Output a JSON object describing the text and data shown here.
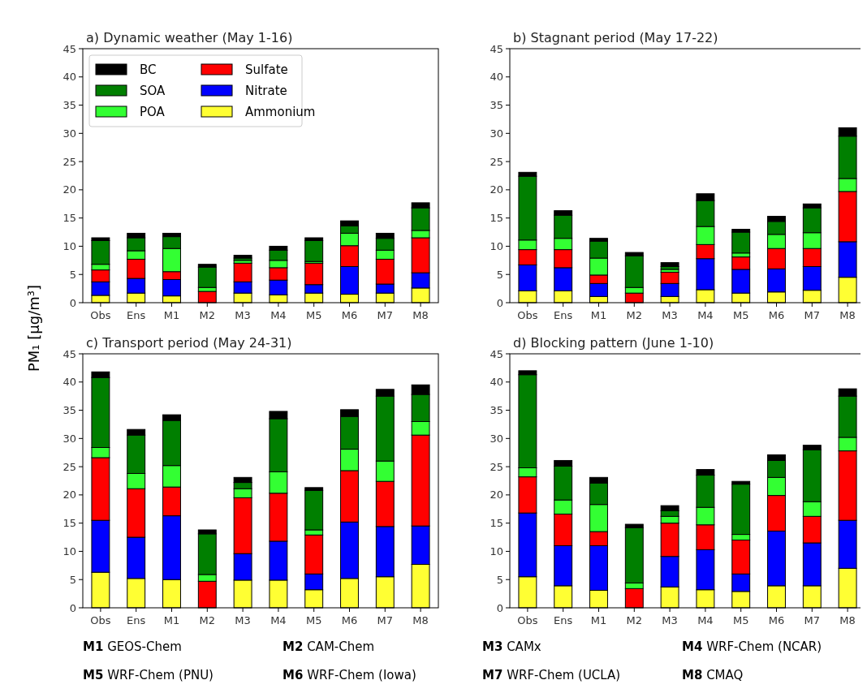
{
  "chart_data": [
    {
      "type": "bar",
      "stacked": true,
      "title": "a) Dynamic weather (May 1-16)",
      "ylabel": "PM₁ [μg/m³]",
      "categories": [
        "Obs",
        "Ens",
        "M1",
        "M2",
        "M3",
        "M4",
        "M5",
        "M6",
        "M7",
        "M8"
      ],
      "ylim": [
        0,
        45
      ],
      "yticks": [
        0,
        5,
        10,
        15,
        20,
        25,
        30,
        35,
        40,
        45
      ],
      "legend": "top left",
      "series": [
        {
          "name": "Ammonium",
          "color": "#ffff33",
          "values": [
            1.3,
            1.7,
            1.2,
            0,
            1.7,
            1.4,
            1.7,
            1.5,
            1.7,
            2.6
          ]
        },
        {
          "name": "Nitrate",
          "color": "#0000ff",
          "values": [
            2.4,
            2.6,
            2.9,
            0,
            2.0,
            2.6,
            1.5,
            4.9,
            1.6,
            2.7
          ]
        },
        {
          "name": "Sulfate",
          "color": "#ff0000",
          "values": [
            2.1,
            3.4,
            1.4,
            2.0,
            3.3,
            2.2,
            3.8,
            3.7,
            4.4,
            6.2
          ]
        },
        {
          "name": "POA",
          "color": "#33ff33",
          "values": [
            1.0,
            1.5,
            4.1,
            0.7,
            0.5,
            1.3,
            0.3,
            2.2,
            1.6,
            1.3
          ]
        },
        {
          "name": "SOA",
          "color": "#007f00",
          "values": [
            4.2,
            2.3,
            2.1,
            3.6,
            0.4,
            1.8,
            3.7,
            1.3,
            2.1,
            4.0
          ]
        },
        {
          "name": "BC",
          "color": "#000000",
          "values": [
            0.5,
            0.8,
            0.6,
            0.5,
            0.5,
            0.7,
            0.5,
            0.9,
            0.9,
            0.9
          ]
        }
      ]
    },
    {
      "type": "bar",
      "stacked": true,
      "title": "b) Stagnant period (May 17-22)",
      "categories": [
        "Obs",
        "Ens",
        "M1",
        "M2",
        "M3",
        "M4",
        "M5",
        "M6",
        "M7",
        "M8"
      ],
      "ylim": [
        0,
        45
      ],
      "yticks": [
        0,
        5,
        10,
        15,
        20,
        25,
        30,
        35,
        40,
        45
      ],
      "series": [
        {
          "color": "#ffff33",
          "values": [
            2.1,
            2.1,
            1.1,
            0,
            1.1,
            2.3,
            1.7,
            1.9,
            2.2,
            4.5
          ]
        },
        {
          "color": "#0000ff",
          "values": [
            4.6,
            4.1,
            2.3,
            0,
            2.3,
            5.5,
            4.2,
            4.1,
            4.2,
            6.3
          ]
        },
        {
          "color": "#ff0000",
          "values": [
            2.7,
            3.2,
            1.5,
            1.7,
            2.0,
            2.5,
            2.2,
            3.6,
            3.2,
            8.9
          ]
        },
        {
          "color": "#33ff33",
          "values": [
            1.7,
            2.0,
            3.0,
            1.0,
            0.5,
            3.2,
            0.7,
            2.5,
            2.8,
            2.3
          ]
        },
        {
          "color": "#007f00",
          "values": [
            11.3,
            4.1,
            3.0,
            5.6,
            0.5,
            4.6,
            3.7,
            2.3,
            4.4,
            7.5
          ]
        },
        {
          "color": "#000000",
          "values": [
            0.7,
            0.8,
            0.5,
            0.6,
            0.7,
            1.2,
            0.5,
            0.9,
            0.7,
            1.5
          ]
        }
      ]
    },
    {
      "type": "bar",
      "stacked": true,
      "title": "c) Transport period (May 24-31)",
      "categories": [
        "Obs",
        "Ens",
        "M1",
        "M2",
        "M3",
        "M4",
        "M5",
        "M6",
        "M7",
        "M8"
      ],
      "ylim": [
        0,
        45
      ],
      "yticks": [
        0,
        5,
        10,
        15,
        20,
        25,
        30,
        35,
        40,
        45
      ],
      "series": [
        {
          "color": "#ffff33",
          "values": [
            6.3,
            5.2,
            5.0,
            0,
            4.9,
            4.9,
            3.2,
            5.2,
            5.5,
            7.7
          ]
        },
        {
          "color": "#0000ff",
          "values": [
            9.2,
            7.3,
            11.3,
            0,
            4.7,
            6.9,
            2.8,
            10.0,
            8.9,
            6.8
          ]
        },
        {
          "color": "#ff0000",
          "values": [
            11.1,
            8.6,
            5.1,
            4.7,
            9.9,
            8.5,
            6.9,
            9.1,
            8.0,
            16.1
          ]
        },
        {
          "color": "#33ff33",
          "values": [
            1.8,
            2.7,
            3.8,
            1.2,
            1.6,
            3.8,
            0.9,
            3.8,
            3.6,
            2.4
          ]
        },
        {
          "color": "#007f00",
          "values": [
            12.4,
            6.8,
            8.0,
            7.2,
            1.1,
            9.4,
            7.0,
            5.8,
            11.5,
            4.8
          ]
        },
        {
          "color": "#000000",
          "values": [
            1.0,
            1.0,
            1.0,
            0.7,
            0.9,
            1.3,
            0.5,
            1.2,
            1.2,
            1.7
          ]
        }
      ]
    },
    {
      "type": "bar",
      "stacked": true,
      "title": "d) Blocking pattern (June 1-10)",
      "categories": [
        "Obs",
        "Ens",
        "M1",
        "M2",
        "M3",
        "M4",
        "M5",
        "M6",
        "M7",
        "M8"
      ],
      "ylim": [
        0,
        45
      ],
      "yticks": [
        0,
        5,
        10,
        15,
        20,
        25,
        30,
        35,
        40,
        45
      ],
      "annotations": [
        "M1 GEOS-Chem",
        "M2 CAM-Chem",
        "M3 CAMx",
        "M4 WRF-Chem (NCAR)",
        "M5 WRF-Chem (PNU)",
        "M6 WRF-Chem (Iowa)",
        "M7 WRF-Chem (UCLA)",
        "M8 CMAQ"
      ],
      "series": [
        {
          "color": "#ffff33",
          "values": [
            5.5,
            3.9,
            3.1,
            0,
            3.7,
            3.2,
            2.9,
            3.9,
            3.9,
            7.0
          ]
        },
        {
          "color": "#0000ff",
          "values": [
            11.3,
            7.1,
            7.9,
            0,
            5.4,
            7.1,
            3.1,
            9.7,
            7.6,
            8.5
          ]
        },
        {
          "color": "#ff0000",
          "values": [
            6.4,
            5.6,
            2.5,
            3.4,
            5.9,
            4.4,
            6.0,
            6.3,
            4.7,
            12.3
          ]
        },
        {
          "color": "#33ff33",
          "values": [
            1.6,
            2.5,
            4.8,
            1.0,
            1.2,
            3.1,
            1.0,
            3.2,
            2.6,
            2.4
          ]
        },
        {
          "color": "#007f00",
          "values": [
            16.5,
            6.0,
            3.8,
            9.8,
            1.0,
            5.7,
            8.9,
            3.0,
            9.2,
            7.3
          ]
        },
        {
          "color": "#000000",
          "values": [
            0.7,
            1.0,
            1.0,
            0.6,
            0.9,
            1.0,
            0.5,
            1.0,
            0.8,
            1.3
          ]
        }
      ]
    }
  ]
}
